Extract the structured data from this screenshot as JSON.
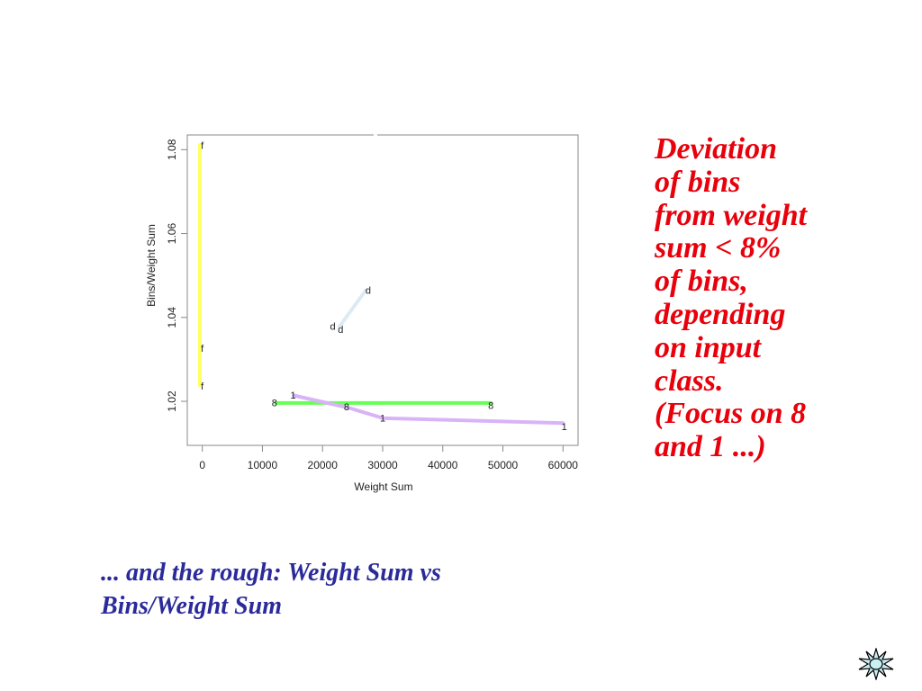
{
  "chart_data": {
    "type": "line",
    "title": "",
    "xlabel": "Weight Sum",
    "ylabel": "Bins/Weight Sum",
    "xlim": [
      -2500,
      62500
    ],
    "ylim": [
      1.0095,
      1.0835
    ],
    "xticks": [
      0,
      10000,
      20000,
      30000,
      40000,
      50000,
      60000
    ],
    "xtick_labels": [
      "0",
      "10000",
      "20000",
      "30000",
      "40000",
      "50000",
      "60000"
    ],
    "yticks": [
      1.02,
      1.04,
      1.06,
      1.08
    ],
    "ytick_labels": [
      "1.02",
      "1.04",
      "1.06",
      "1.08"
    ],
    "grid": false,
    "legend": "none",
    "series": [
      {
        "label": "f",
        "color": "#ffff66",
        "points": [
          [
            -400,
            1.0238
          ],
          [
            -400,
            1.0328
          ],
          [
            -400,
            1.0811
          ]
        ],
        "markers": [
          [
            0,
            1.0237
          ],
          [
            0,
            1.0327
          ],
          [
            0,
            1.081
          ]
        ]
      },
      {
        "label": "d",
        "color": "#dcebf3",
        "points": [
          [
            22800,
            1.0378
          ],
          [
            27200,
            1.0465
          ]
        ],
        "markers": [
          [
            21700,
            1.0379
          ],
          [
            23000,
            1.0372
          ],
          [
            27600,
            1.0465
          ]
        ]
      },
      {
        "label": "8",
        "color": "#66ff55",
        "points": [
          [
            12200,
            1.0196
          ],
          [
            48000,
            1.0196
          ]
        ],
        "markers": [
          [
            12000,
            1.0197
          ],
          [
            24000,
            1.0187
          ],
          [
            48000,
            1.019
          ]
        ]
      },
      {
        "label": "1",
        "color": "#d9b3f7",
        "points": [
          [
            15200,
            1.0214
          ],
          [
            24500,
            1.0184
          ],
          [
            30000,
            1.016
          ],
          [
            60000,
            1.0148
          ]
        ],
        "markers": [
          [
            15100,
            1.0215
          ],
          [
            30000,
            1.016
          ],
          [
            60200,
            1.014
          ]
        ]
      }
    ]
  },
  "note": {
    "lines": [
      "Deviation",
      "of bins",
      "from weight",
      "sum < 8%",
      "of bins,",
      "depending",
      "on input",
      "class.",
      "(Focus on 8",
      "and 1 ...)"
    ]
  },
  "caption": {
    "lines": [
      "... and the rough: Weight Sum vs",
      "Bins/Weight Sum"
    ]
  },
  "nav_icon": {
    "name": "sun-navigation-icon",
    "color": "#c9eff5"
  }
}
